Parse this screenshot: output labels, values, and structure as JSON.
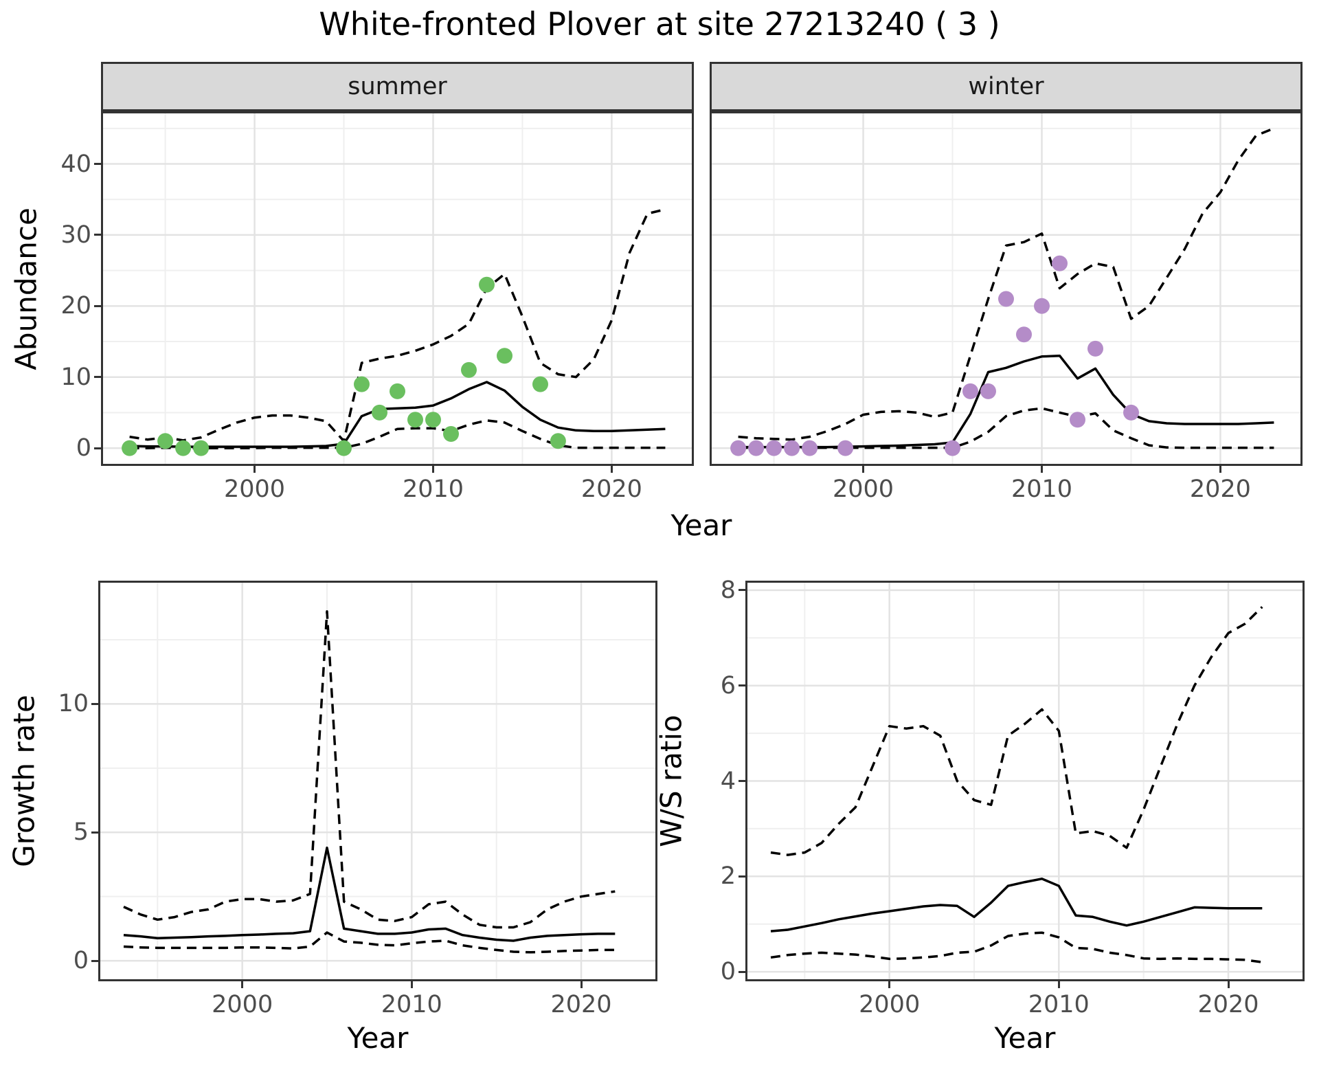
{
  "title": "White-fronted Plover at site 27213240 ( 3 )",
  "colors": {
    "summer_points": "#6abf5f",
    "winter_points": "#b48cc8",
    "line": "#000000",
    "grid_major": "#e3e3e3",
    "grid_minor": "#efefef",
    "panel_border": "#333333",
    "strip_bg": "#d9d9d9",
    "axis_text": "#4d4d4d",
    "panel_bg": "#ffffff"
  },
  "chart_data": [
    {
      "id": "abundance-summer",
      "type": "line",
      "facet_label": "summer",
      "xlabel": "Year",
      "ylabel": "Abundance",
      "xlim": [
        1991.4,
        2024.6
      ],
      "ylim": [
        -2.5,
        47.4
      ],
      "x_ticks": [
        2000,
        2010,
        2020
      ],
      "x_minor": [
        1995,
        2005,
        2015
      ],
      "y_ticks": [
        0,
        10,
        20,
        30,
        40
      ],
      "y_minor": [
        5,
        15,
        25,
        35,
        45
      ],
      "grid": true,
      "series": [
        {
          "name": "median_fit",
          "style": "solid",
          "years": [
            1993,
            1994,
            1995,
            1996,
            1997,
            1998,
            1999,
            2000,
            2001,
            2002,
            2003,
            2004,
            2005,
            2006,
            2007,
            2008,
            2009,
            2010,
            2011,
            2012,
            2013,
            2014,
            2015,
            2016,
            2017,
            2018,
            2019,
            2020,
            2021,
            2022,
            2023
          ],
          "values": [
            0.3,
            0.25,
            0.25,
            0.2,
            0.2,
            0.2,
            0.2,
            0.2,
            0.2,
            0.2,
            0.25,
            0.3,
            0.6,
            4.5,
            5.5,
            5.6,
            5.7,
            6.0,
            7.0,
            8.3,
            9.3,
            8.1,
            5.8,
            4.0,
            2.9,
            2.5,
            2.4,
            2.4,
            2.5,
            2.6,
            2.7
          ]
        },
        {
          "name": "upper_95ci",
          "style": "dashed",
          "years": [
            1993,
            1994,
            1995,
            1996,
            1997,
            1998,
            1999,
            2000,
            2001,
            2002,
            2003,
            2004,
            2005,
            2006,
            2007,
            2008,
            2009,
            2010,
            2011,
            2012,
            2013,
            2014,
            2015,
            2016,
            2017,
            2018,
            2019,
            2020,
            2021,
            2022,
            2023
          ],
          "values": [
            1.6,
            1.2,
            1.5,
            1.1,
            1.5,
            2.6,
            3.6,
            4.3,
            4.6,
            4.6,
            4.3,
            3.8,
            1.0,
            12.0,
            12.6,
            13.0,
            13.7,
            14.6,
            15.8,
            17.5,
            22.5,
            24.5,
            18.5,
            12.0,
            10.4,
            10.0,
            12.5,
            18.0,
            27.5,
            33.0,
            33.6
          ]
        },
        {
          "name": "lower_95ci",
          "style": "dashed",
          "years": [
            1993,
            1994,
            1995,
            1996,
            1997,
            1998,
            1999,
            2000,
            2001,
            2002,
            2003,
            2004,
            2005,
            2006,
            2007,
            2008,
            2009,
            2010,
            2011,
            2012,
            2013,
            2014,
            2015,
            2016,
            2017,
            2018,
            2019,
            2020,
            2021,
            2022,
            2023
          ],
          "values": [
            0,
            0,
            0.05,
            0,
            0,
            0,
            0,
            0,
            0.05,
            0.05,
            0.05,
            0.05,
            0.05,
            0.6,
            1.6,
            2.7,
            2.8,
            2.8,
            2.4,
            3.3,
            3.9,
            3.6,
            2.4,
            1.3,
            0.4,
            0.05,
            0.05,
            0.05,
            0.05,
            0.05,
            0.05
          ]
        },
        {
          "name": "observed_counts",
          "style": "points",
          "color": "#6abf5f",
          "years": [
            1993,
            1995,
            1996,
            1997,
            2005,
            2006,
            2007,
            2008,
            2009,
            2010,
            2011,
            2012,
            2013,
            2014,
            2016,
            2017
          ],
          "values": [
            0,
            1,
            0,
            0,
            0,
            9,
            5,
            8,
            4,
            4,
            2,
            11,
            23,
            13,
            9,
            1
          ]
        }
      ]
    },
    {
      "id": "abundance-winter",
      "type": "line",
      "facet_label": "winter",
      "xlabel": "Year",
      "ylabel": "Abundance",
      "xlim": [
        1991.4,
        2024.6
      ],
      "ylim": [
        -2.5,
        47.4
      ],
      "x_ticks": [
        2000,
        2010,
        2020
      ],
      "x_minor": [
        1995,
        2005,
        2015
      ],
      "y_ticks": [
        0,
        10,
        20,
        30,
        40
      ],
      "y_minor": [
        5,
        15,
        25,
        35,
        45
      ],
      "grid": true,
      "series": [
        {
          "name": "median_fit",
          "style": "solid",
          "years": [
            1993,
            1994,
            1995,
            1996,
            1997,
            1998,
            1999,
            2000,
            2001,
            2002,
            2003,
            2004,
            2005,
            2006,
            2007,
            2008,
            2009,
            2010,
            2011,
            2012,
            2013,
            2014,
            2015,
            2016,
            2017,
            2018,
            2019,
            2020,
            2021,
            2022,
            2023
          ],
          "values": [
            0.15,
            0.15,
            0.15,
            0.15,
            0.15,
            0.15,
            0.2,
            0.25,
            0.3,
            0.35,
            0.45,
            0.55,
            0.8,
            4.8,
            10.7,
            11.3,
            12.2,
            12.9,
            13.0,
            9.8,
            11.2,
            7.5,
            4.8,
            3.8,
            3.5,
            3.4,
            3.4,
            3.4,
            3.4,
            3.5,
            3.6
          ]
        },
        {
          "name": "upper_95ci",
          "style": "dashed",
          "years": [
            1993,
            1994,
            1995,
            1996,
            1997,
            1998,
            1999,
            2000,
            2001,
            2002,
            2003,
            2004,
            2005,
            2006,
            2007,
            2008,
            2009,
            2010,
            2011,
            2012,
            2013,
            2014,
            2015,
            2016,
            2017,
            2018,
            2019,
            2020,
            2021,
            2022,
            2023
          ],
          "values": [
            1.6,
            1.4,
            1.3,
            1.2,
            1.6,
            2.4,
            3.4,
            4.7,
            5.1,
            5.2,
            5.0,
            4.4,
            5.0,
            13.0,
            21.0,
            28.5,
            29.0,
            30.2,
            22.5,
            24.5,
            26.0,
            25.5,
            18.2,
            20.0,
            24.0,
            28.0,
            33.0,
            36.0,
            40.5,
            44.0,
            45.0
          ]
        },
        {
          "name": "lower_95ci",
          "style": "dashed",
          "years": [
            1993,
            1994,
            1995,
            1996,
            1997,
            1998,
            1999,
            2000,
            2001,
            2002,
            2003,
            2004,
            2005,
            2006,
            2007,
            2008,
            2009,
            2010,
            2011,
            2012,
            2013,
            2014,
            2015,
            2016,
            2017,
            2018,
            2019,
            2020,
            2021,
            2022,
            2023
          ],
          "values": [
            0.05,
            0.05,
            0.05,
            0.05,
            0.05,
            0.05,
            0.05,
            0.05,
            0.05,
            0.05,
            0.05,
            0.05,
            0.05,
            0.9,
            2.3,
            4.5,
            5.3,
            5.6,
            5.0,
            4.4,
            4.9,
            2.5,
            1.4,
            0.4,
            0.1,
            0.05,
            0.05,
            0.05,
            0.05,
            0.05,
            0.05
          ]
        },
        {
          "name": "observed_counts",
          "style": "points",
          "color": "#b48cc8",
          "years": [
            1993,
            1994,
            1995,
            1996,
            1997,
            1999,
            2005,
            2006,
            2007,
            2008,
            2009,
            2010,
            2011,
            2012,
            2013,
            2015
          ],
          "values": [
            0,
            0,
            0,
            0,
            0,
            0,
            0,
            8,
            8,
            21,
            16,
            20,
            26,
            4,
            14,
            5
          ]
        }
      ]
    },
    {
      "id": "growth-rate",
      "type": "line",
      "facet_label": "",
      "xlabel": "Year",
      "ylabel": "Growth rate",
      "xlim": [
        1991.5,
        2024.5
      ],
      "ylim": [
        -0.8,
        14.8
      ],
      "x_ticks": [
        2000,
        2010,
        2020
      ],
      "x_minor": [
        1995,
        2005,
        2015
      ],
      "y_ticks": [
        0,
        5,
        10
      ],
      "y_minor": [
        2.5,
        7.5,
        12.5
      ],
      "grid": true,
      "series": [
        {
          "name": "median_fit",
          "style": "solid",
          "years": [
            1993,
            1994,
            1995,
            1996,
            1997,
            1998,
            1999,
            2000,
            2001,
            2002,
            2003,
            2004,
            2005,
            2006,
            2007,
            2008,
            2009,
            2010,
            2011,
            2012,
            2013,
            2014,
            2015,
            2016,
            2017,
            2018,
            2019,
            2020,
            2021,
            2022
          ],
          "values": [
            1.0,
            0.95,
            0.88,
            0.9,
            0.92,
            0.95,
            0.97,
            1.0,
            1.02,
            1.05,
            1.07,
            1.15,
            4.4,
            1.25,
            1.15,
            1.05,
            1.05,
            1.1,
            1.22,
            1.25,
            1.0,
            0.9,
            0.82,
            0.78,
            0.9,
            0.97,
            1.0,
            1.03,
            1.05,
            1.05
          ]
        },
        {
          "name": "upper_95ci",
          "style": "dashed",
          "years": [
            1993,
            1994,
            1995,
            1996,
            1997,
            1998,
            1999,
            2000,
            2001,
            2002,
            2003,
            2004,
            2005,
            2006,
            2007,
            2008,
            2009,
            2010,
            2011,
            2012,
            2013,
            2014,
            2015,
            2016,
            2017,
            2018,
            2019,
            2020,
            2021,
            2022
          ],
          "values": [
            2.1,
            1.8,
            1.6,
            1.7,
            1.9,
            2.0,
            2.3,
            2.4,
            2.4,
            2.3,
            2.35,
            2.6,
            13.6,
            2.3,
            2.0,
            1.6,
            1.55,
            1.7,
            2.2,
            2.3,
            1.8,
            1.4,
            1.3,
            1.3,
            1.5,
            2.0,
            2.3,
            2.5,
            2.6,
            2.7
          ]
        },
        {
          "name": "lower_95ci",
          "style": "dashed",
          "years": [
            1993,
            1994,
            1995,
            1996,
            1997,
            1998,
            1999,
            2000,
            2001,
            2002,
            2003,
            2004,
            2005,
            2006,
            2007,
            2008,
            2009,
            2010,
            2011,
            2012,
            2013,
            2014,
            2015,
            2016,
            2017,
            2018,
            2019,
            2020,
            2021,
            2022
          ],
          "values": [
            0.55,
            0.52,
            0.5,
            0.5,
            0.5,
            0.5,
            0.5,
            0.52,
            0.52,
            0.5,
            0.48,
            0.55,
            1.1,
            0.75,
            0.7,
            0.62,
            0.6,
            0.68,
            0.75,
            0.78,
            0.6,
            0.5,
            0.42,
            0.35,
            0.33,
            0.35,
            0.38,
            0.4,
            0.42,
            0.42
          ]
        }
      ]
    },
    {
      "id": "ws-ratio",
      "type": "line",
      "facet_label": "",
      "xlabel": "Year",
      "ylabel": "W/S ratio",
      "xlim": [
        1991.5,
        2024.5
      ],
      "ylim": [
        -0.2,
        8.2
      ],
      "x_ticks": [
        2000,
        2010,
        2020
      ],
      "x_minor": [
        1995,
        2005,
        2015
      ],
      "y_ticks": [
        0,
        2,
        4,
        6,
        8
      ],
      "y_minor": [
        1,
        3,
        5,
        7
      ],
      "grid": true,
      "series": [
        {
          "name": "median_fit",
          "style": "solid",
          "years": [
            1993,
            1994,
            1995,
            1996,
            1997,
            1998,
            1999,
            2000,
            2001,
            2002,
            2003,
            2004,
            2005,
            2006,
            2007,
            2008,
            2009,
            2010,
            2011,
            2012,
            2013,
            2014,
            2015,
            2016,
            2017,
            2018,
            2019,
            2020,
            2021,
            2022
          ],
          "values": [
            0.85,
            0.88,
            0.95,
            1.02,
            1.1,
            1.16,
            1.22,
            1.27,
            1.32,
            1.37,
            1.4,
            1.38,
            1.15,
            1.45,
            1.8,
            1.88,
            1.95,
            1.8,
            1.18,
            1.15,
            1.05,
            0.97,
            1.05,
            1.15,
            1.25,
            1.35,
            1.34,
            1.33,
            1.33,
            1.33
          ]
        },
        {
          "name": "upper_95ci",
          "style": "dashed",
          "years": [
            1993,
            1994,
            1995,
            1996,
            1997,
            1998,
            1999,
            2000,
            2001,
            2002,
            2003,
            2004,
            2005,
            2006,
            2007,
            2008,
            2009,
            2010,
            2011,
            2012,
            2013,
            2014,
            2015,
            2016,
            2017,
            2018,
            2019,
            2020,
            2021,
            2022
          ],
          "values": [
            2.5,
            2.45,
            2.5,
            2.7,
            3.1,
            3.45,
            4.3,
            5.15,
            5.1,
            5.15,
            4.95,
            4.0,
            3.6,
            3.5,
            4.95,
            5.2,
            5.5,
            5.05,
            2.9,
            2.95,
            2.85,
            2.6,
            3.4,
            4.3,
            5.2,
            6.0,
            6.6,
            7.1,
            7.3,
            7.65
          ]
        },
        {
          "name": "lower_95ci",
          "style": "dashed",
          "years": [
            1993,
            1994,
            1995,
            1996,
            1997,
            1998,
            1999,
            2000,
            2001,
            2002,
            2003,
            2004,
            2005,
            2006,
            2007,
            2008,
            2009,
            2010,
            2011,
            2012,
            2013,
            2014,
            2015,
            2016,
            2017,
            2018,
            2019,
            2020,
            2021,
            2022
          ],
          "values": [
            0.3,
            0.35,
            0.38,
            0.4,
            0.38,
            0.36,
            0.32,
            0.27,
            0.28,
            0.3,
            0.33,
            0.4,
            0.42,
            0.55,
            0.75,
            0.8,
            0.82,
            0.72,
            0.5,
            0.48,
            0.4,
            0.35,
            0.28,
            0.27,
            0.28,
            0.27,
            0.27,
            0.26,
            0.25,
            0.2
          ]
        }
      ]
    }
  ]
}
